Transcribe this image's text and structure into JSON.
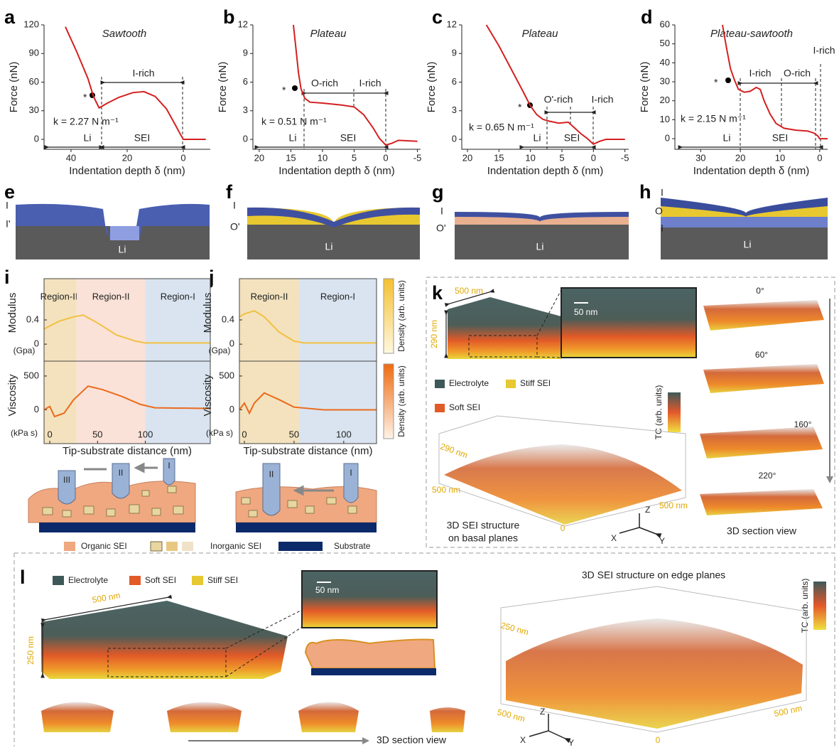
{
  "chart_data": [
    {
      "panel": "a",
      "type": "line",
      "title": "Sawtooth",
      "x_label": "Indentation depth δ (nm)",
      "y_label": "Force (nN)",
      "xlim": [
        49.6,
        -9.6
      ],
      "xticks": [
        40,
        20,
        0
      ],
      "ylim": [
        -10.4,
        120
      ],
      "yticks": [
        0,
        30,
        60,
        90,
        120
      ],
      "series": [
        {
          "color": "#d42020",
          "x": [
            42,
            38,
            34,
            32,
            30,
            27,
            23,
            18,
            14,
            10,
            6,
            3,
            1,
            0,
            -3,
            -8
          ],
          "values": [
            118,
            92,
            64,
            45,
            33,
            38,
            44,
            49,
            50,
            45,
            32,
            16,
            5,
            0,
            0,
            0
          ]
        }
      ],
      "annotations": [
        "*",
        "I-rich",
        "k = 2.27 N m⁻¹",
        "Li",
        "SEI"
      ]
    },
    {
      "panel": "b",
      "type": "line",
      "title": "Plateau",
      "x_label": "Indentation depth δ (nm)",
      "y_label": "Force (nN)",
      "xlim": [
        21,
        -5.5
      ],
      "xticks": [
        20,
        15,
        10,
        5,
        0,
        -5
      ],
      "ylim": [
        -1.04,
        12
      ],
      "yticks": [
        0,
        3,
        6,
        9,
        12
      ],
      "series": [
        {
          "color": "#d42020",
          "x": [
            14.6,
            14.2,
            13.8,
            13.4,
            12.8,
            12,
            10,
            7,
            5,
            3.5,
            2,
            1,
            0,
            -1,
            -2,
            -5
          ],
          "values": [
            12,
            9.5,
            7,
            5.3,
            4.3,
            3.9,
            3.8,
            3.6,
            3.4,
            2.6,
            1.2,
            0.1,
            -0.6,
            -0.4,
            -0.1,
            -0.2
          ]
        }
      ],
      "annotations": [
        "*",
        "O-rich",
        "I-rich",
        "k = 0.51 N m⁻¹",
        "Li",
        "SEI"
      ]
    },
    {
      "panel": "c",
      "type": "line",
      "title": "Plateau",
      "x_label": "Indentation depth δ (nm)",
      "y_label": "Force (nN)",
      "xlim": [
        20.9,
        -5.6
      ],
      "xticks": [
        20,
        15,
        10,
        5,
        0,
        -5
      ],
      "ylim": [
        -1.04,
        12
      ],
      "yticks": [
        0,
        3,
        6,
        9,
        12
      ],
      "series": [
        {
          "color": "#d42020",
          "x": [
            17,
            15,
            13,
            11,
            10,
            9,
            8,
            7,
            5.5,
            4,
            3,
            2,
            1,
            0,
            -1,
            -2,
            -5
          ],
          "values": [
            12,
            9.8,
            7.3,
            4.8,
            3.5,
            2.6,
            2.1,
            1.9,
            1.7,
            1.8,
            1.2,
            0.6,
            0.1,
            -0.5,
            -0.2,
            0,
            0
          ]
        }
      ],
      "annotations": [
        "*",
        "O'-rich",
        "I-rich",
        "k = 0.65 N m⁻¹",
        "Li",
        "SEI"
      ]
    },
    {
      "panel": "d",
      "type": "line",
      "title": "Plateau-sawtooth",
      "x_label": "Indentation depth δ (nm)",
      "y_label": "Force (nN)",
      "xlim": [
        36.5,
        -2
      ],
      "xticks": [
        30,
        20,
        10,
        0
      ],
      "ylim": [
        -5.6,
        60
      ],
      "yticks": [
        0,
        10,
        20,
        30,
        40,
        50,
        60
      ],
      "series": [
        {
          "color": "#d42020",
          "x": [
            24.5,
            23.5,
            22.5,
            21.5,
            20.5,
            19,
            17.5,
            16,
            15,
            14,
            12.5,
            11,
            9,
            6,
            3,
            1.5,
            0.5,
            0,
            -1,
            -2
          ],
          "values": [
            60,
            48,
            37,
            31,
            26,
            24.5,
            25,
            27,
            26,
            20,
            13,
            8,
            5.5,
            4.5,
            4,
            3,
            1.5,
            0,
            0,
            0
          ]
        }
      ],
      "annotations": [
        "*",
        "I-rich",
        "O-rich",
        "I-rich",
        "k = 2.15 N m⁻¹",
        "Li",
        "SEI"
      ]
    },
    {
      "panel": "i",
      "type": "line",
      "y_label": "Modulus",
      "y_unit": "(Gpa)",
      "xlim": [
        -6,
        168
      ],
      "ylim": [
        -0.28,
        1.08
      ],
      "yticks": [
        0,
        0.4
      ],
      "regions": [
        {
          "name": "Region-III",
          "from": -6,
          "to": 28,
          "color": "#f3e2bd"
        },
        {
          "name": "Region-II",
          "from": 28,
          "to": 100,
          "color": "#fbe2d8"
        },
        {
          "name": "Region-I",
          "from": 100,
          "to": 168,
          "color": "#d9e4f0"
        }
      ],
      "series": [
        {
          "color": "#f2c040",
          "x": [
            -6,
            0,
            10,
            25,
            35,
            50,
            70,
            90,
            100,
            168
          ],
          "values": [
            0.25,
            0.3,
            0.38,
            0.45,
            0.48,
            0.35,
            0.15,
            0.05,
            0.02,
            0.02
          ]
        }
      ]
    },
    {
      "type": "line",
      "y_label": "Viscosity",
      "y_unit": "(kPa s)",
      "x_label": "Tip-substrate distance (nm)",
      "xlim": [
        -6,
        168
      ],
      "xticks": [
        0,
        50,
        100
      ],
      "ylim": [
        -500,
        720
      ],
      "yticks": [
        0,
        500
      ],
      "regions": [
        {
          "from": -6,
          "to": 28,
          "color": "#f3e2bd"
        },
        {
          "from": 28,
          "to": 100,
          "color": "#fbe2d8"
        },
        {
          "from": 100,
          "to": 168,
          "color": "#d9e4f0"
        }
      ],
      "series": [
        {
          "color": "#ec6a1c",
          "x": [
            -6,
            0,
            5,
            15,
            25,
            40,
            55,
            75,
            95,
            110,
            168
          ],
          "values": [
            0,
            50,
            -100,
            -50,
            150,
            350,
            300,
            200,
            80,
            30,
            20
          ]
        }
      ]
    },
    {
      "panel": "j",
      "type": "line",
      "y_label": "Modulus",
      "y_unit": "(Gpa)",
      "xlim": [
        -5,
        133
      ],
      "ylim": [
        -0.28,
        1.08
      ],
      "yticks": [
        0,
        0.4
      ],
      "regions": [
        {
          "name": "Region-II",
          "from": -5,
          "to": 55,
          "color": "#f3e2bd"
        },
        {
          "name": "Region-I",
          "from": 55,
          "to": 133,
          "color": "#d9e4f0"
        }
      ],
      "colorbar_label": "Density (arb. units)",
      "colorbar_colors": [
        "#fff8e0",
        "#f5c030"
      ],
      "series": [
        {
          "color": "#f2c040",
          "x": [
            -5,
            0,
            10,
            20,
            35,
            50,
            60,
            133
          ],
          "values": [
            0.45,
            0.5,
            0.55,
            0.45,
            0.2,
            0.05,
            0.02,
            0.02
          ]
        }
      ]
    },
    {
      "type": "line",
      "y_label": "Viscosity",
      "y_unit": "(kPa s)",
      "x_label": "Tip-substrate distance (nm)",
      "xlim": [
        -5,
        133
      ],
      "xticks": [
        0,
        50,
        100
      ],
      "ylim": [
        -500,
        720
      ],
      "yticks": [
        0,
        500
      ],
      "regions": [
        {
          "from": -5,
          "to": 55,
          "color": "#f3e2bd"
        },
        {
          "from": 55,
          "to": 133,
          "color": "#d9e4f0"
        }
      ],
      "colorbar_label": "Density (arb. units)",
      "colorbar_colors": [
        "#fff3e8",
        "#ef6a10"
      ],
      "series": [
        {
          "color": "#ec6a1c",
          "x": [
            -5,
            0,
            5,
            10,
            20,
            35,
            50,
            80,
            133
          ],
          "values": [
            0,
            100,
            -50,
            100,
            250,
            150,
            40,
            0,
            0
          ]
        }
      ]
    }
  ],
  "schematics": [
    {
      "panel": "e",
      "labels": [
        "I",
        "I'",
        "Li"
      ]
    },
    {
      "panel": "f",
      "labels": [
        "I",
        "O'",
        "Li"
      ]
    },
    {
      "panel": "g",
      "labels": [
        "I",
        "O'",
        "Li"
      ]
    },
    {
      "panel": "h",
      "labels": [
        "I",
        "O",
        "I",
        "Li"
      ]
    }
  ],
  "tip_cartoons": {
    "i_tips": [
      "III",
      "II",
      "I"
    ],
    "j_tips": [
      "II",
      "I"
    ],
    "legend": [
      "Organic SEI",
      "Inorganic SEI",
      "Substrate"
    ]
  },
  "panel_k": {
    "panel": "k",
    "scale_x": "500 nm",
    "scale_z": "290 nm",
    "inset_scale": "50 nm",
    "legend": [
      "Electrolyte",
      "Stiff SEI",
      "Soft SEI"
    ],
    "colorbar_label": "TC (arb. units)",
    "axis_labels": [
      "290 nm",
      "500 nm",
      "500 nm",
      "0"
    ],
    "caption": [
      "3D SEI structure",
      "on basal planes"
    ],
    "axes": [
      "Z",
      "X",
      "Y"
    ],
    "angles": [
      "0°",
      "60°",
      "160°",
      "220°"
    ],
    "section_caption": "3D section view"
  },
  "panel_l": {
    "panel": "l",
    "legend": [
      "Electrolyte",
      "Soft SEI",
      "Stiff SEI"
    ],
    "scale_x": "500 nm",
    "scale_z": "250 nm",
    "inset_scale": "50 nm",
    "title": "3D SEI structure on edge planes",
    "colorbar_label": "TC (arb. units)",
    "axis_labels": [
      "250 nm",
      "500 nm",
      "500 nm",
      "0"
    ],
    "axes": [
      "Z",
      "X",
      "Y"
    ],
    "section_caption": "3D section view"
  }
}
